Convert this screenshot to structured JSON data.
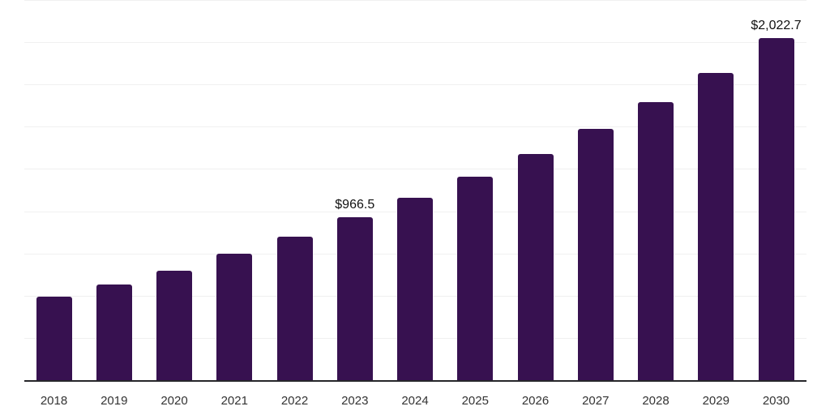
{
  "chart": {
    "background": "#ffffff",
    "bar_color": "#371150",
    "grid_color": "#f0f0f0",
    "axis_color": "#26262a",
    "tick_label_color": "#333333",
    "data_label_color": "#111111"
  },
  "chart_data": {
    "type": "bar",
    "title": "",
    "xlabel": "",
    "ylabel": "",
    "categories": [
      "2018",
      "2019",
      "2020",
      "2021",
      "2022",
      "2023",
      "2024",
      "2025",
      "2026",
      "2027",
      "2028",
      "2029",
      "2030"
    ],
    "values": [
      498,
      571,
      653,
      753,
      853,
      966.5,
      1081,
      1205,
      1341,
      1488,
      1648,
      1820,
      2022.7
    ],
    "data_labels": [
      "",
      "",
      "",
      "",
      "",
      "$966.5",
      "",
      "",
      "",
      "",
      "",
      "",
      "$2,022.7"
    ],
    "labeled_points": [
      {
        "category": "2023",
        "label": "$966.5",
        "value": 966.5
      },
      {
        "category": "2030",
        "label": "$2,022.7",
        "value": 2022.7
      }
    ],
    "ylim": [
      0,
      2250
    ],
    "grid_step": 250,
    "grid": true,
    "y_axis_labels_visible": false,
    "legend_position": "none"
  }
}
